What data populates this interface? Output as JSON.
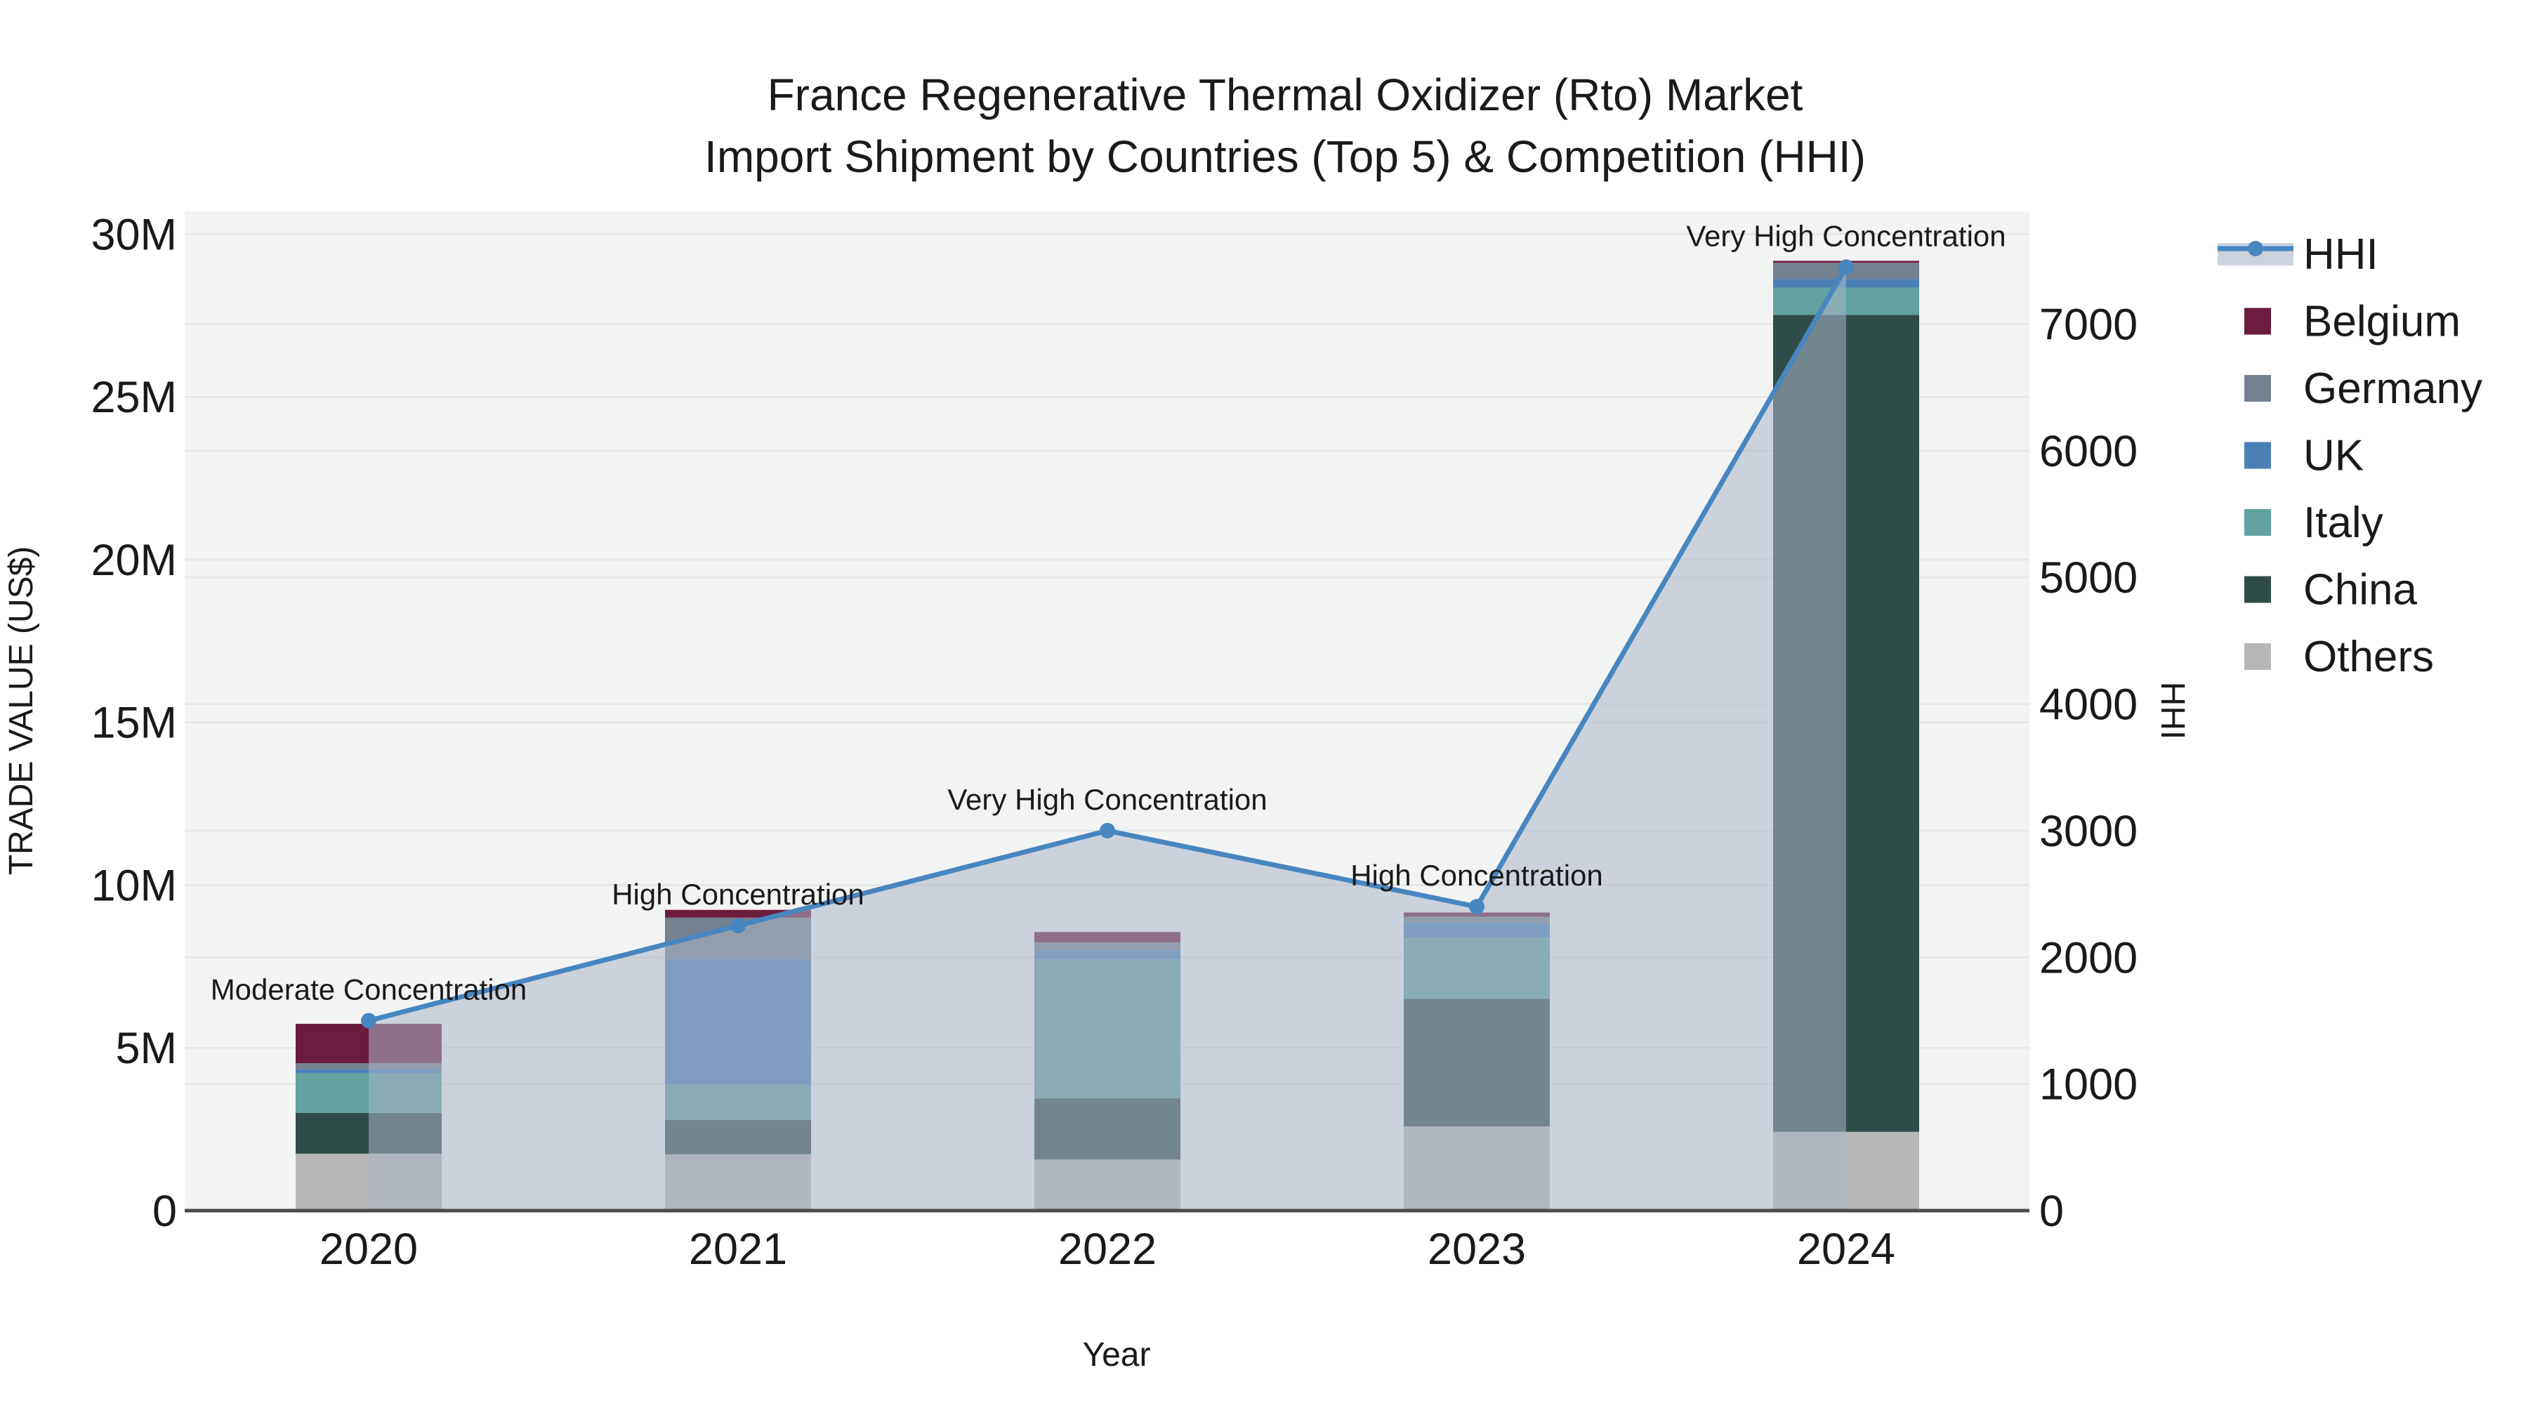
{
  "title": {
    "line1": "France Regenerative Thermal Oxidizer (Rto) Market",
    "line2": "Import Shipment by Countries (Top 5) & Competition (HHI)"
  },
  "axes": {
    "left": {
      "title": "TRADE VALUE (US$)",
      "tick_labels": [
        "0",
        "5M",
        "10M",
        "15M",
        "20M",
        "25M",
        "30M"
      ],
      "tick_values": [
        0,
        5,
        10,
        15,
        20,
        25,
        30
      ]
    },
    "right": {
      "title": "HHI",
      "tick_labels": [
        "0",
        "1000",
        "2000",
        "3000",
        "4000",
        "5000",
        "6000",
        "7000"
      ],
      "tick_values": [
        0,
        1000,
        2000,
        3000,
        4000,
        5000,
        6000,
        7000
      ]
    },
    "x": {
      "title": "Year",
      "categories": [
        "2020",
        "2021",
        "2022",
        "2023",
        "2024"
      ]
    }
  },
  "legend": {
    "items": [
      {
        "label": "HHI",
        "type": "line",
        "color": "#4886c0"
      },
      {
        "label": "Belgium",
        "type": "swatch",
        "color": "#6c1c3e"
      },
      {
        "label": "Germany",
        "type": "swatch",
        "color": "#74818f"
      },
      {
        "label": "UK",
        "type": "swatch",
        "color": "#4a80b5"
      },
      {
        "label": "Italy",
        "type": "swatch",
        "color": "#61a19e"
      },
      {
        "label": "China",
        "type": "swatch",
        "color": "#2f4c49"
      },
      {
        "label": "Others",
        "type": "swatch",
        "color": "#b7b7b7"
      }
    ]
  },
  "colors": {
    "plot_bg": "#f2f3f3",
    "grid": "#e4e5e5",
    "axis_line": "#4a4a4a",
    "hhi_line": "#4886c0",
    "hhi_area": "rgba(172,182,200,0.55)",
    "hhi_legend_band": "#ccd3de",
    "text": "#1a1a1a"
  },
  "chart_data": {
    "type": "bar+line",
    "title": "France Regenerative Thermal Oxidizer (Rto) Market Import Shipment by Countries (Top 5) & Competition (HHI)",
    "categories": [
      "2020",
      "2021",
      "2022",
      "2023",
      "2024"
    ],
    "bar_unit": "million US$",
    "stack_order": "bottom-to-top",
    "series": [
      {
        "name": "Others",
        "color": "#b7b7b7",
        "values": [
          1.75,
          1.73,
          1.57,
          2.59,
          2.42
        ]
      },
      {
        "name": "China",
        "color": "#2f4c49",
        "values": [
          1.25,
          1.06,
          1.88,
          3.92,
          25.1
        ]
      },
      {
        "name": "Italy",
        "color": "#61a19e",
        "values": [
          1.23,
          1.08,
          4.27,
          1.88,
          0.84
        ]
      },
      {
        "name": "UK",
        "color": "#4a80b5",
        "values": [
          0.11,
          3.86,
          0.28,
          0.45,
          0.26
        ]
      },
      {
        "name": "Germany",
        "color": "#74818f",
        "values": [
          0.19,
          1.27,
          0.24,
          0.19,
          0.5
        ]
      },
      {
        "name": "Belgium",
        "color": "#6c1c3e",
        "values": [
          1.21,
          0.24,
          0.32,
          0.13,
          0.06
        ]
      }
    ],
    "bar_totals_millions": [
      5.74,
      9.24,
      8.56,
      9.16,
      29.18
    ],
    "line_series": {
      "name": "HHI",
      "axis": "right",
      "values": [
        1500,
        2250,
        3000,
        2400,
        7450
      ],
      "point_annotations": [
        "Moderate Concentration",
        "High Concentration",
        "Very High Concentration",
        "High Concentration",
        "Very High Concentration"
      ],
      "area_fill": true
    },
    "xlabel": "Year",
    "ylabel_left": "TRADE VALUE (US$)",
    "ylabel_right": "HHI",
    "ylim_left_millions": [
      0,
      30.7
    ],
    "ylim_right_hhi": [
      0,
      7890
    ],
    "grid": true,
    "legend_position": "right"
  }
}
